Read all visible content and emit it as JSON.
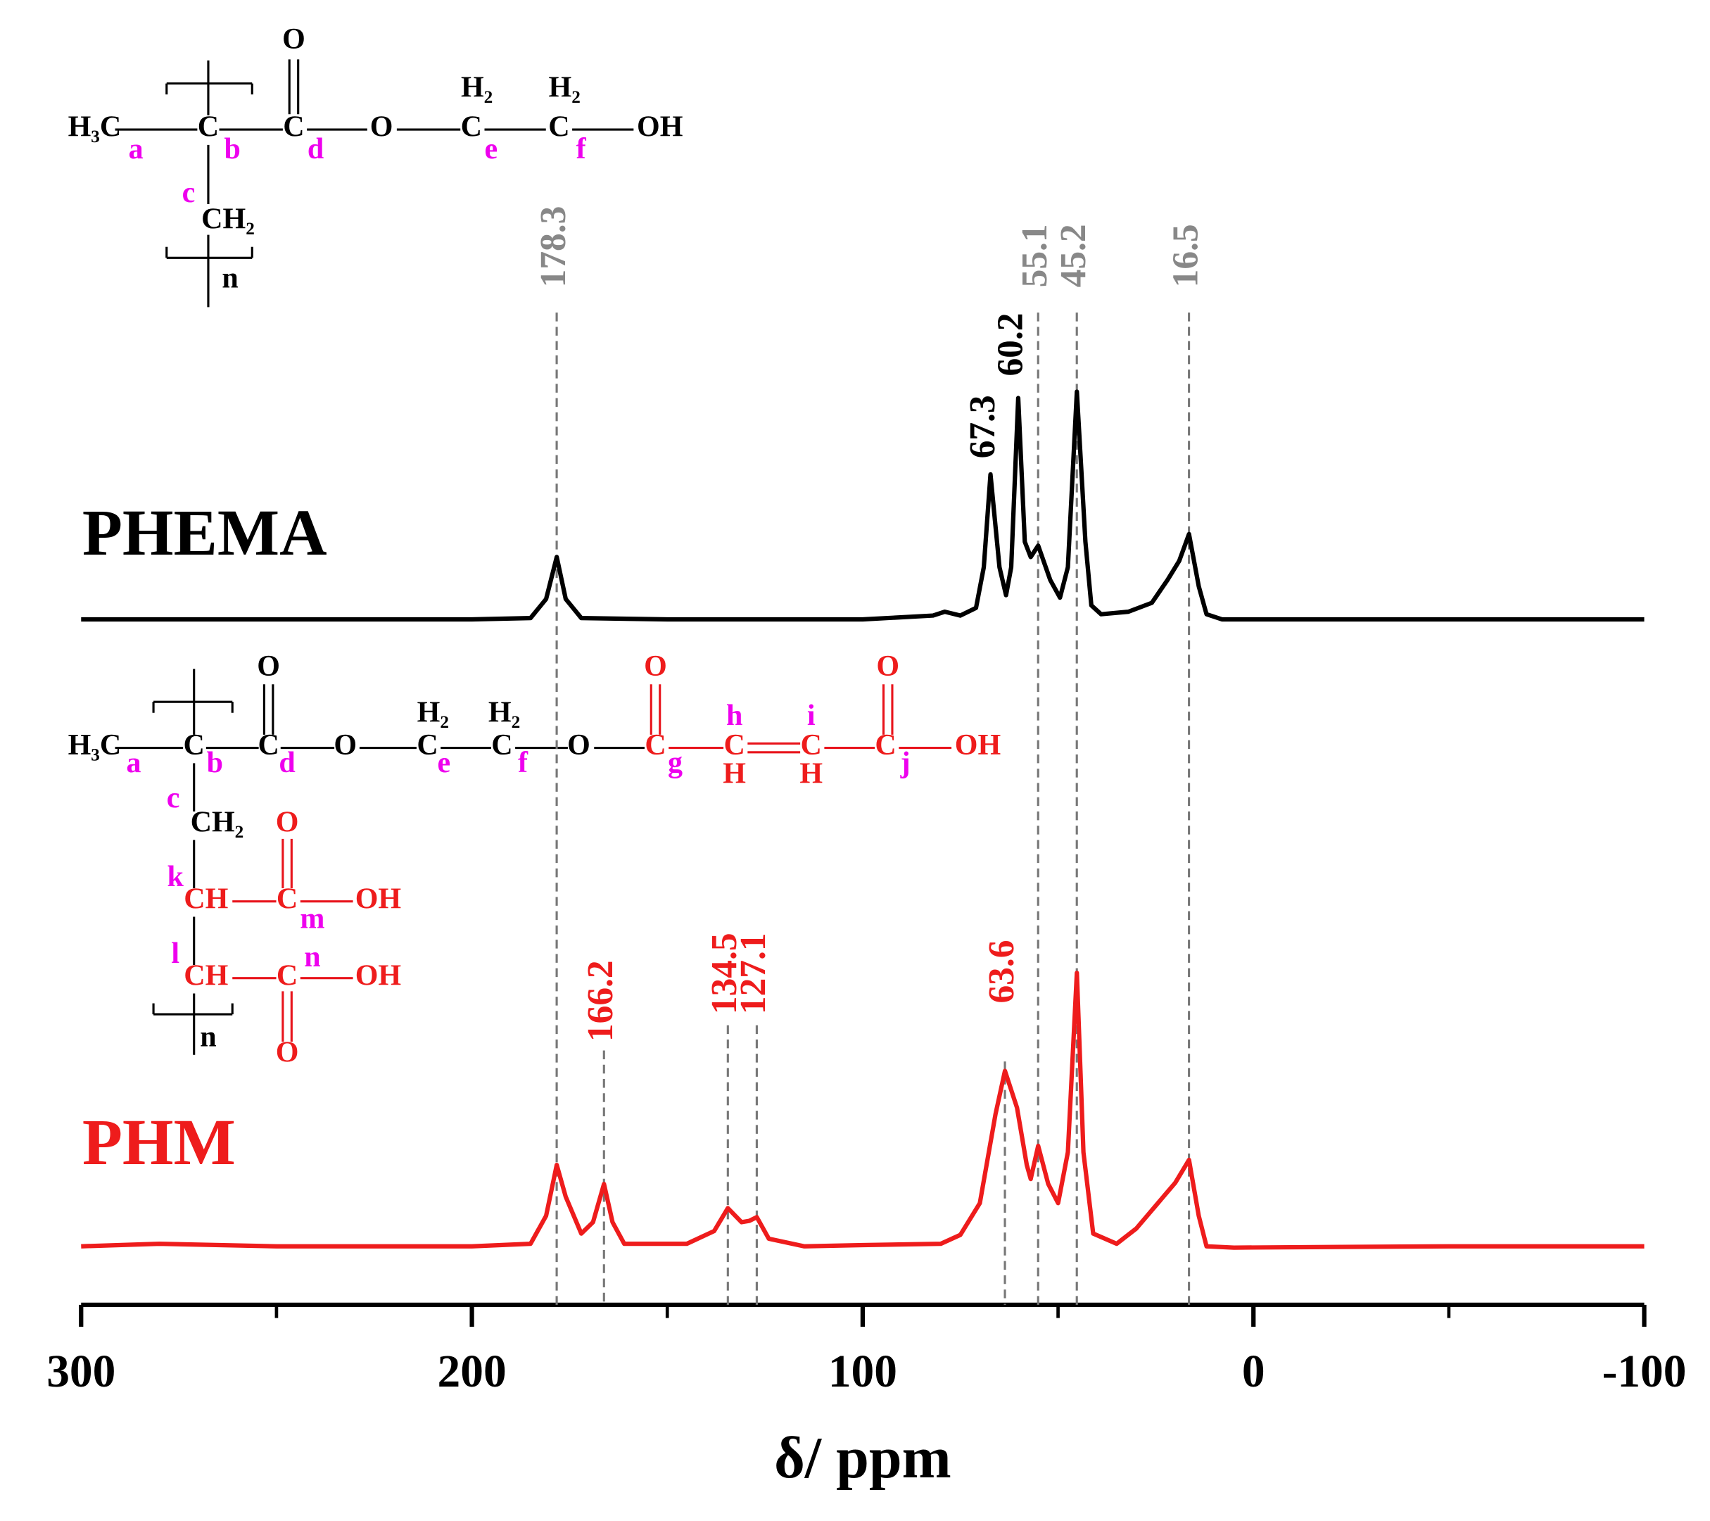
{
  "chart_data": {
    "type": "line",
    "xlabel": "δ/ ppm",
    "xlim": [
      300,
      -100
    ],
    "xticks": [
      300,
      200,
      100,
      0,
      -100
    ],
    "xticks_minor": [
      250,
      150,
      50,
      -50
    ],
    "ylim": [
      0,
      100
    ],
    "series": [
      {
        "name": "PHEMA",
        "color": "#000000",
        "x": [
          300,
          250,
          200,
          185,
          181,
          178.3,
          176,
          172,
          150,
          100,
          82,
          79,
          75,
          71,
          69,
          67.3,
          65,
          63.3,
          62,
          60.2,
          58.5,
          57,
          55.1,
          52,
          49.5,
          47.5,
          45.2,
          43,
          41.5,
          39,
          32,
          26,
          22,
          19,
          16.5,
          14,
          12,
          8,
          0,
          -50,
          -100
        ],
        "values": [
          53.9,
          53.9,
          53.9,
          54.0,
          55.5,
          58.8,
          55.5,
          54.0,
          53.9,
          53.9,
          54.2,
          54.5,
          54.2,
          54.8,
          58,
          65.3,
          58,
          55.8,
          58,
          71.3,
          60,
          58.8,
          59.7,
          57,
          55.6,
          58,
          71.8,
          60,
          55,
          54.3,
          54.5,
          55.2,
          57,
          58.5,
          60.6,
          56.5,
          54.3,
          53.9,
          53.9,
          53.9,
          53.9
        ]
      },
      {
        "name": "PHM",
        "color": "#ee1c1c",
        "x": [
          300,
          280,
          250,
          200,
          185,
          181,
          178.3,
          176,
          172,
          169,
          166.2,
          164,
          161,
          145,
          138,
          134.5,
          131,
          129,
          127.1,
          124,
          115,
          100,
          80,
          75,
          70,
          66,
          63.6,
          60.5,
          58,
          57,
          55.1,
          52.5,
          50,
          47.5,
          45.2,
          43.5,
          41,
          35,
          30,
          25,
          20,
          16.5,
          14,
          12,
          5,
          -50,
          -100
        ],
        "values": [
          4.6,
          4.8,
          4.6,
          4.6,
          4.8,
          7,
          11.0,
          8.5,
          5.6,
          6.5,
          9.5,
          6.5,
          4.8,
          4.8,
          5.8,
          7.6,
          6.5,
          6.6,
          6.9,
          5.2,
          4.6,
          4.7,
          4.8,
          5.5,
          8,
          15,
          18.4,
          15.5,
          11,
          9.9,
          12.5,
          9.5,
          8.0,
          12,
          26.1,
          12,
          5.6,
          4.8,
          6,
          7.8,
          9.6,
          11.4,
          7,
          4.6,
          4.5,
          4.6,
          4.6
        ]
      }
    ],
    "reference_peaks": [
      178.3,
      55.1,
      45.2,
      16.5
    ],
    "phema_peaks": [
      67.3,
      60.2
    ],
    "phm_peaks": [
      166.2,
      134.5,
      127.1,
      63.6
    ],
    "structures": [
      [
        "H₃C",
        "a",
        "C",
        "b",
        "C",
        "d",
        "O",
        "O",
        "H₂",
        "C",
        "e",
        "H₂",
        "C",
        "f",
        "OH",
        "c",
        "CH₂",
        "n"
      ],
      [
        "H₃C",
        "a",
        "C",
        "b",
        "C",
        "d",
        "O",
        "O",
        "H₂",
        "C",
        "e",
        "H₂",
        "C",
        "f",
        "O",
        "C",
        "g",
        "O",
        "h",
        "C",
        "H",
        "i",
        "C",
        "H",
        "C",
        "j",
        "O",
        "OH",
        "c",
        "CH₂",
        "k",
        "CH",
        "C",
        "m",
        "O",
        "OH",
        "l",
        "CH",
        "C",
        "n",
        "OH",
        "O",
        "n"
      ]
    ]
  }
}
